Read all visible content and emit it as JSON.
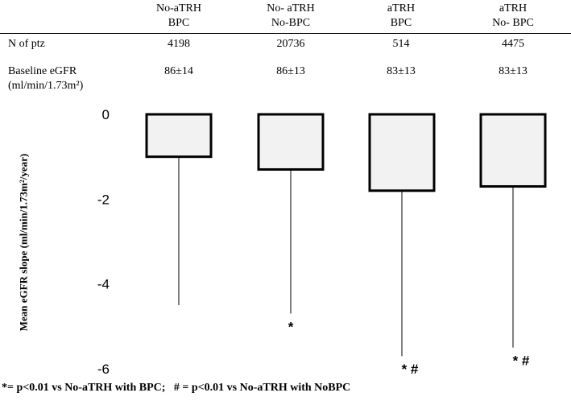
{
  "table": {
    "columns": [
      "No-aTRH\nBPC",
      "No- aTRH\nNo-BPC",
      "aTRH\nBPC",
      "aTRH\nNo- BPC"
    ],
    "rows": [
      {
        "label": "N of ptz",
        "values": [
          "4198",
          "20736",
          "514",
          "4475"
        ]
      },
      {
        "label": "Baseline eGFR\n(ml/min/1.73m²)",
        "values": [
          "86±14",
          "86±13",
          "83±13",
          "83±13"
        ]
      }
    ]
  },
  "chart_data": {
    "type": "bar",
    "categories": [
      "No-aTRH BPC",
      "No- aTRH No-BPC",
      "aTRH BPC",
      "aTRH No- BPC"
    ],
    "values": [
      -1.0,
      -1.3,
      -1.8,
      -1.7
    ],
    "error_low": [
      -4.5,
      -4.7,
      -5.7,
      -5.5
    ],
    "annotations": [
      "",
      "*",
      "*  #",
      "*  #"
    ],
    "ylabel": "Mean eGFR slope\n(ml/min/1.73m²/year)",
    "ylim": [
      -6,
      0
    ],
    "yticks": [
      "0",
      "-2",
      "-4",
      "-6"
    ],
    "bar_fill": "#f2f2f2",
    "bar_stroke": "#000000"
  },
  "footnote": "*= p<0.01 vs No-aTRH with BPC;   # = p<0.01 vs No-aTRH with NoBPC"
}
